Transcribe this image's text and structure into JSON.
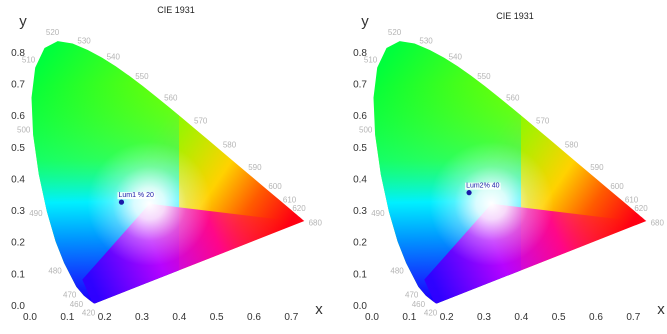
{
  "colors": {
    "axis": "#333333",
    "wavelength_label": "#b5b5b5",
    "marker": "#1a1aa8",
    "label_box": "#ffffff"
  },
  "chart_data": [
    {
      "type": "scatter",
      "title": "CIE 1931",
      "xlabel": "x",
      "ylabel": "y",
      "xlim": [
        0.0,
        0.75
      ],
      "ylim": [
        0.0,
        0.85
      ],
      "xticks": [
        "0.0",
        "0.1",
        "0.2",
        "0.3",
        "0.4",
        "0.5",
        "0.6",
        "0.7"
      ],
      "yticks": [
        "0.0",
        "0.1",
        "0.2",
        "0.3",
        "0.4",
        "0.5",
        "0.6",
        "0.7",
        "0.8"
      ],
      "grid": false,
      "wavelength_labels": [
        {
          "nm": "420",
          "x": 0.17,
          "y": 0.005
        },
        {
          "nm": "460",
          "x": 0.14,
          "y": 0.03
        },
        {
          "nm": "470",
          "x": 0.124,
          "y": 0.058
        },
        {
          "nm": "480",
          "x": 0.09,
          "y": 0.13
        },
        {
          "nm": "490",
          "x": 0.045,
          "y": 0.295
        },
        {
          "nm": "500",
          "x": 0.008,
          "y": 0.538
        },
        {
          "nm": "510",
          "x": 0.014,
          "y": 0.75
        },
        {
          "nm": "520",
          "x": 0.074,
          "y": 0.834
        },
        {
          "nm": "530",
          "x": 0.155,
          "y": 0.806
        },
        {
          "nm": "540",
          "x": 0.23,
          "y": 0.754
        },
        {
          "nm": "550",
          "x": 0.302,
          "y": 0.692
        },
        {
          "nm": "560",
          "x": 0.373,
          "y": 0.624
        },
        {
          "nm": "570",
          "x": 0.444,
          "y": 0.555
        },
        {
          "nm": "580",
          "x": 0.512,
          "y": 0.487
        },
        {
          "nm": "590",
          "x": 0.575,
          "y": 0.424
        },
        {
          "nm": "600",
          "x": 0.627,
          "y": 0.372
        },
        {
          "nm": "610",
          "x": 0.666,
          "y": 0.333
        },
        {
          "nm": "620",
          "x": 0.691,
          "y": 0.308
        },
        {
          "nm": "680",
          "x": 0.735,
          "y": 0.265
        }
      ],
      "points": [
        {
          "label": "Lum1 % 20",
          "x": 0.245,
          "y": 0.325
        }
      ]
    },
    {
      "type": "scatter",
      "title": "CIE 1931",
      "xlabel": "x",
      "ylabel": "y",
      "xlim": [
        0.0,
        0.75
      ],
      "ylim": [
        0.0,
        0.85
      ],
      "xticks": [
        "0.0",
        "0.1",
        "0.2",
        "0.3",
        "0.4",
        "0.5",
        "0.6",
        "0.7"
      ],
      "yticks": [
        "0.0",
        "0.1",
        "0.2",
        "0.3",
        "0.4",
        "0.5",
        "0.6",
        "0.7",
        "0.8"
      ],
      "grid": false,
      "wavelength_labels": [
        {
          "nm": "420",
          "x": 0.17,
          "y": 0.005
        },
        {
          "nm": "460",
          "x": 0.14,
          "y": 0.03
        },
        {
          "nm": "470",
          "x": 0.124,
          "y": 0.058
        },
        {
          "nm": "480",
          "x": 0.09,
          "y": 0.13
        },
        {
          "nm": "490",
          "x": 0.045,
          "y": 0.295
        },
        {
          "nm": "500",
          "x": 0.008,
          "y": 0.538
        },
        {
          "nm": "510",
          "x": 0.014,
          "y": 0.75
        },
        {
          "nm": "520",
          "x": 0.074,
          "y": 0.834
        },
        {
          "nm": "530",
          "x": 0.155,
          "y": 0.806
        },
        {
          "nm": "540",
          "x": 0.23,
          "y": 0.754
        },
        {
          "nm": "550",
          "x": 0.302,
          "y": 0.692
        },
        {
          "nm": "560",
          "x": 0.373,
          "y": 0.624
        },
        {
          "nm": "570",
          "x": 0.444,
          "y": 0.555
        },
        {
          "nm": "580",
          "x": 0.512,
          "y": 0.487
        },
        {
          "nm": "590",
          "x": 0.575,
          "y": 0.424
        },
        {
          "nm": "600",
          "x": 0.627,
          "y": 0.372
        },
        {
          "nm": "610",
          "x": 0.666,
          "y": 0.333
        },
        {
          "nm": "620",
          "x": 0.691,
          "y": 0.308
        },
        {
          "nm": "680",
          "x": 0.735,
          "y": 0.265
        }
      ],
      "points": [
        {
          "label": "Lum2% 40",
          "x": 0.26,
          "y": 0.355
        }
      ]
    }
  ]
}
